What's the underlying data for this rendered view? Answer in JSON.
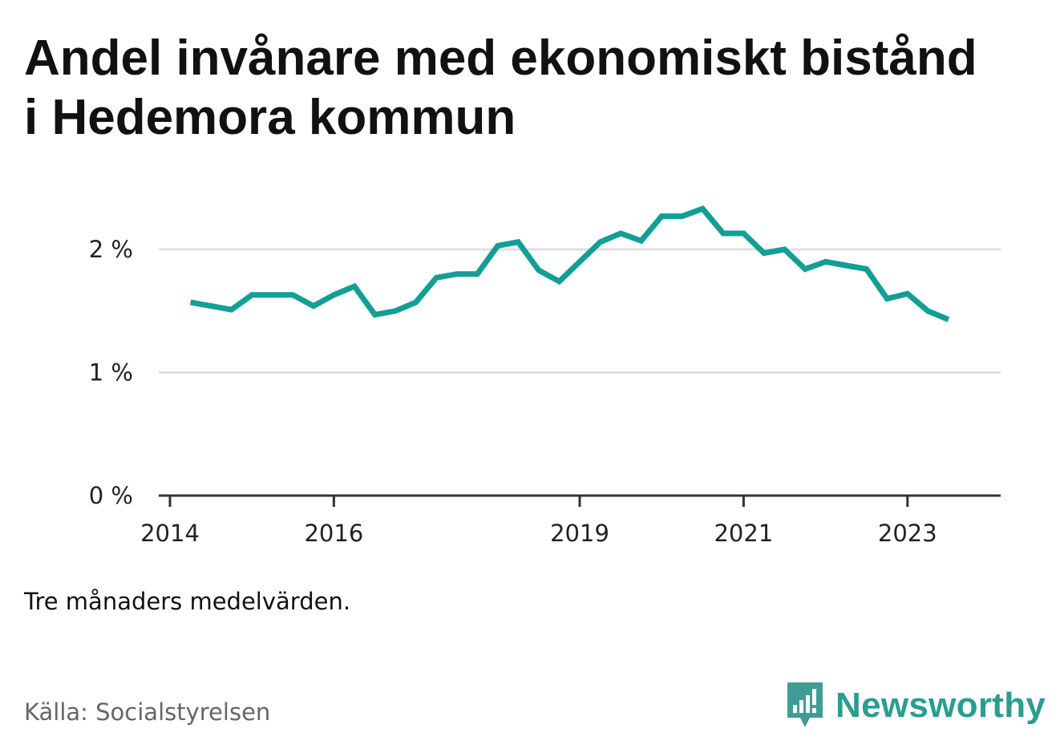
{
  "title": "Andel invånare med ekonomiskt bistånd i Hedemora kommun",
  "note": "Tre månaders medelvärden.",
  "source": "Källa: Socialstyrelsen",
  "brand": {
    "name": "Newsworthy",
    "icon": "newsworthy-logo-icon",
    "color": "#2a9d91"
  },
  "chart_data": {
    "type": "line",
    "title": "Andel invånare med ekonomiskt bistånd i Hedemora kommun",
    "xlabel": "",
    "ylabel": "",
    "line_color": "#139e96",
    "grid": true,
    "ylim": [
      0,
      2.5
    ],
    "xlim": [
      "2014-01",
      "2024-01"
    ],
    "y_ticks": [
      {
        "value": 0,
        "label": "0 %"
      },
      {
        "value": 1,
        "label": "1 %"
      },
      {
        "value": 2,
        "label": "2 %"
      }
    ],
    "x_ticks": [
      {
        "value": "2014-01",
        "label": "2014"
      },
      {
        "value": "2016-01",
        "label": "2016"
      },
      {
        "value": "2019-01",
        "label": "2019"
      },
      {
        "value": "2021-01",
        "label": "2021"
      },
      {
        "value": "2023-01",
        "label": "2023"
      }
    ],
    "series": [
      {
        "x": [
          "2014-04",
          "2014-07",
          "2014-10",
          "2015-01",
          "2015-04",
          "2015-07",
          "2015-10",
          "2016-01",
          "2016-04",
          "2016-07",
          "2016-10",
          "2017-01",
          "2017-04",
          "2017-07",
          "2017-10",
          "2018-01",
          "2018-04",
          "2018-07",
          "2018-10",
          "2019-01",
          "2019-04",
          "2019-07",
          "2019-10",
          "2020-01",
          "2020-04",
          "2020-07",
          "2020-10",
          "2021-01",
          "2021-04",
          "2021-07",
          "2021-10",
          "2022-01",
          "2022-04",
          "2022-07",
          "2022-10",
          "2023-01",
          "2023-04",
          "2023-07"
        ],
        "values": [
          1.57,
          1.54,
          1.51,
          1.63,
          1.63,
          1.63,
          1.54,
          1.63,
          1.7,
          1.47,
          1.5,
          1.57,
          1.77,
          1.8,
          1.8,
          2.03,
          2.06,
          1.83,
          1.74,
          1.9,
          2.06,
          2.13,
          2.07,
          2.27,
          2.27,
          2.33,
          2.13,
          2.13,
          1.97,
          2.0,
          1.84,
          1.9,
          1.87,
          1.84,
          1.6,
          1.64,
          1.5,
          1.43
        ]
      }
    ]
  }
}
